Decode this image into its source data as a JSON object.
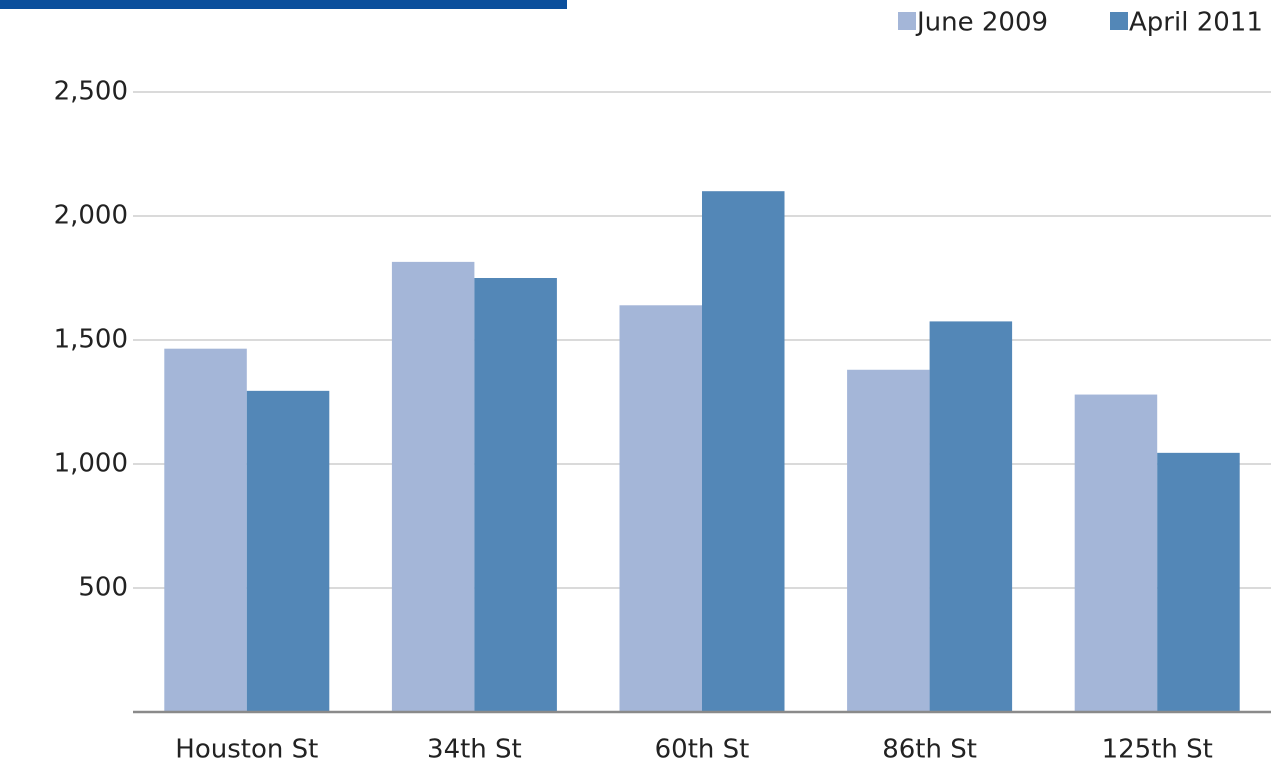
{
  "chart_data": {
    "type": "bar",
    "categories": [
      "Houston St",
      "34th St",
      "60th St",
      "86th St",
      "125th St"
    ],
    "series": [
      {
        "name": "June 2009",
        "color": "#a4b6d8",
        "values": [
          1465,
          1815,
          1640,
          1380,
          1280
        ]
      },
      {
        "name": "April 2011",
        "color": "#5387b7",
        "values": [
          1295,
          1750,
          2100,
          1575,
          1045
        ]
      }
    ],
    "ylim": [
      0,
      2500
    ],
    "yticks": [
      500,
      {
        "value": 1000,
        "label": "1,000"
      },
      {
        "value": 1500,
        "label": "1,500"
      },
      {
        "value": 2000,
        "label": "2,000"
      },
      {
        "value": 2500,
        "label": "2,500"
      }
    ],
    "grid": true,
    "legend": "top-right"
  }
}
